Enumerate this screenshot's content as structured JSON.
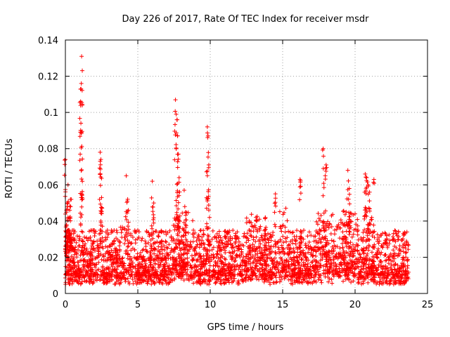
{
  "chart_data": {
    "type": "scatter",
    "title": "Day 226 of 2017, Rate Of TEC Index for receiver msdr",
    "xlabel": "GPS time / hours",
    "ylabel": "ROTI / TECUs",
    "xlim": [
      0,
      25
    ],
    "ylim": [
      0,
      0.14
    ],
    "x_ticks": [
      0,
      5,
      10,
      15,
      20,
      25
    ],
    "x_tick_labels": [
      "0",
      "5",
      "10",
      "15",
      "20",
      "25"
    ],
    "y_ticks": [
      0,
      0.02,
      0.04,
      0.06,
      0.08,
      0.1,
      0.12,
      0.14
    ],
    "y_tick_labels": [
      "0",
      "0.02",
      "0.04",
      "0.06",
      "0.08",
      "0.1",
      "0.12",
      "0.14"
    ],
    "grid": true,
    "marker": "+",
    "marker_color": "#ff0000",
    "series": [
      {
        "name": "ROTI",
        "x_range_hours": [
          0,
          23.7
        ],
        "x": [
          0.0,
          0.05,
          0.08,
          0.12,
          0.18,
          0.22,
          0.3,
          0.35,
          0.4,
          0.5,
          1.05,
          1.08,
          1.1,
          1.12,
          1.15,
          2.4,
          2.45,
          2.5,
          4.2,
          4.3,
          6.0,
          6.1,
          7.6,
          7.65,
          7.7,
          7.75,
          7.8,
          7.85,
          8.2,
          8.3,
          9.8,
          9.85,
          9.9,
          9.95,
          13.8,
          14.5,
          16.2,
          17.8,
          18.0,
          19.5,
          19.6,
          20.7,
          20.8,
          20.9,
          21.0,
          21.3
        ],
        "y": [
          0.074,
          0.022,
          0.038,
          0.048,
          0.06,
          0.035,
          0.046,
          0.052,
          0.03,
          0.024,
          0.106,
          0.113,
          0.116,
          0.131,
          0.053,
          0.078,
          0.074,
          0.053,
          0.065,
          0.052,
          0.062,
          0.05,
          0.107,
          0.099,
          0.096,
          0.087,
          0.077,
          0.064,
          0.057,
          0.045,
          0.092,
          0.087,
          0.071,
          0.042,
          0.042,
          0.055,
          0.063,
          0.08,
          0.071,
          0.068,
          0.058,
          0.066,
          0.064,
          0.06,
          0.056,
          0.063
        ],
        "baseline": {
          "min": 0.005,
          "typical_low": 0.01,
          "typical_high": 0.025,
          "max_dense": 0.035
        }
      }
    ]
  }
}
